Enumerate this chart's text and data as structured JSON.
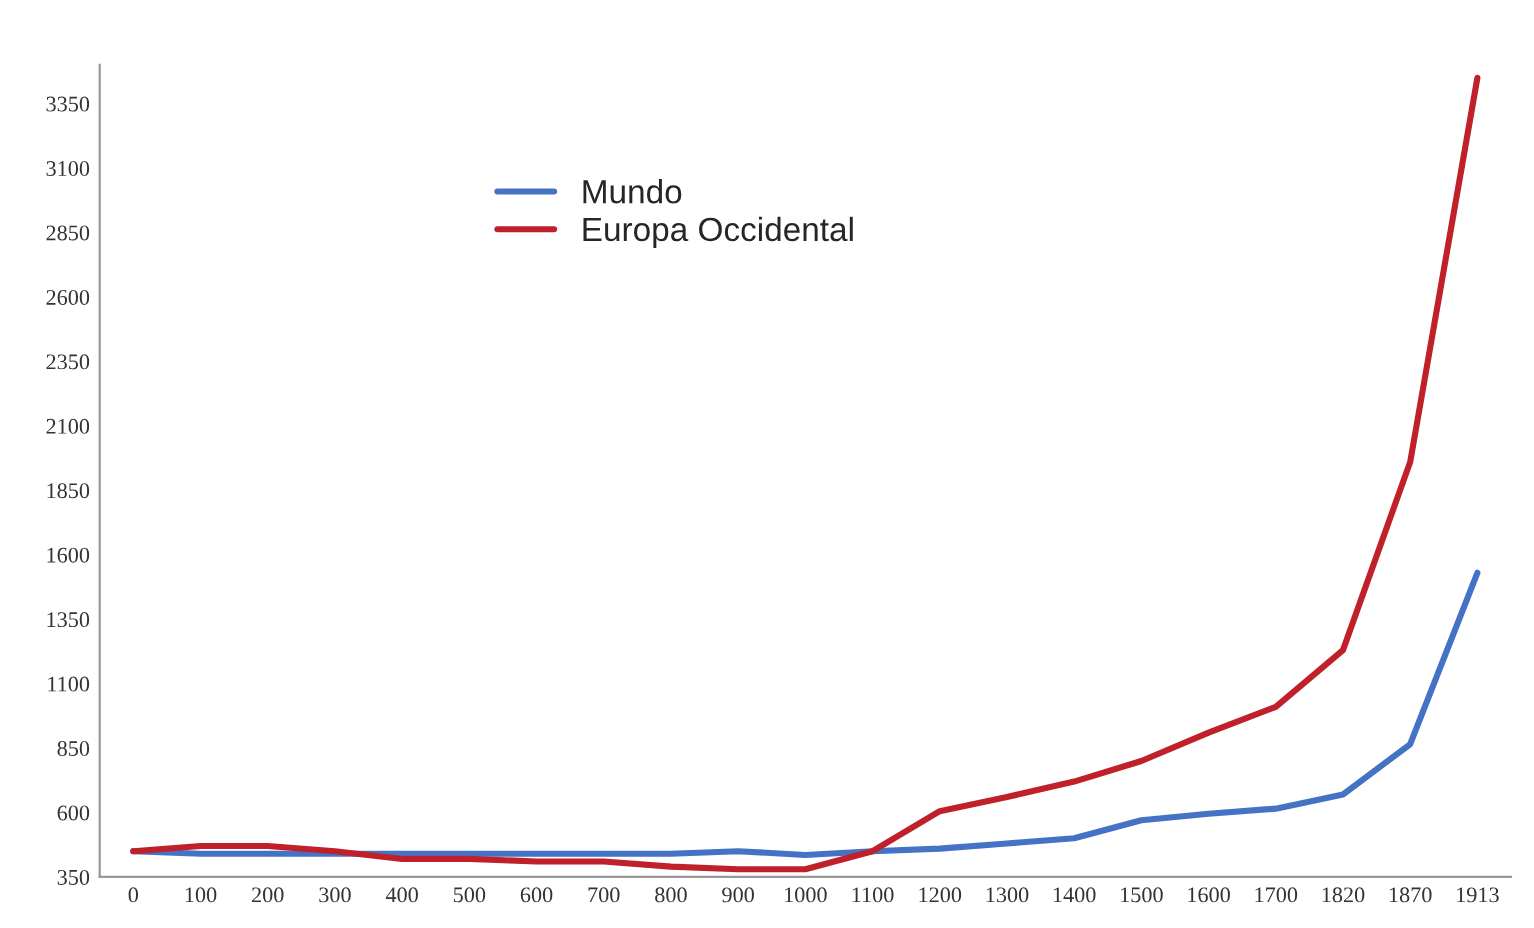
{
  "chart_data": {
    "type": "line",
    "categories": [
      "0",
      "100",
      "200",
      "300",
      "400",
      "500",
      "600",
      "700",
      "800",
      "900",
      "1000",
      "1100",
      "1200",
      "1300",
      "1400",
      "1500",
      "1600",
      "1700",
      "1820",
      "1870",
      "1913"
    ],
    "series": [
      {
        "name": "Mundo",
        "color": "#4472c4",
        "values": [
          450,
          440,
          440,
          440,
          440,
          440,
          440,
          440,
          440,
          450,
          435,
          450,
          460,
          480,
          500,
          570,
          595,
          615,
          670,
          865,
          1530
        ]
      },
      {
        "name": "Europa Occidental",
        "color": "#c0202a",
        "values": [
          450,
          470,
          470,
          450,
          420,
          420,
          410,
          410,
          390,
          380,
          380,
          450,
          605,
          660,
          720,
          800,
          910,
          1010,
          1230,
          1960,
          3450
        ]
      }
    ],
    "ylim": [
      350,
      3500
    ],
    "yticks": [
      350,
      600,
      850,
      1100,
      1350,
      1600,
      1850,
      2100,
      2350,
      2600,
      2850,
      3100,
      3350
    ],
    "legend": "top left",
    "grid": false,
    "marker": "none",
    "line_style": "solid"
  }
}
